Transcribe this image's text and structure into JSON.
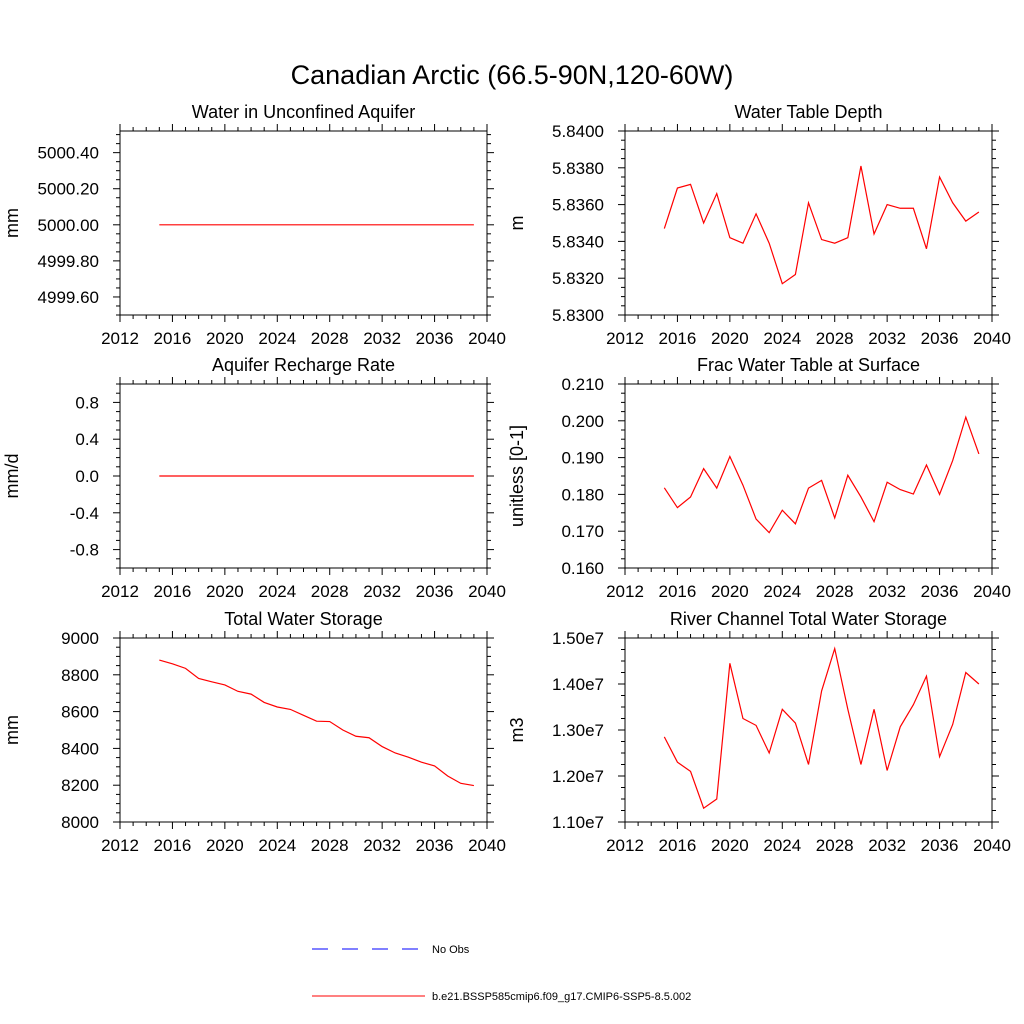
{
  "figure": {
    "title": "Canadian Arctic (66.5-90N,120-60W)"
  },
  "colors": {
    "model": "#ff0000",
    "obs": "#0000ff",
    "axis": "#000000"
  },
  "legend": {
    "placement": "bottom-center",
    "entries": [
      {
        "label": "No Obs",
        "style": "dashed",
        "color": "#0000ff"
      },
      {
        "label": "b.e21.BSSP585cmip6.f09_g17.CMIP6-SSP5-8.5.002",
        "style": "solid",
        "color": "#ff0000"
      }
    ]
  },
  "chart_data": [
    {
      "type": "line",
      "title": "Water in Unconfined Aquifer",
      "ylabel": "mm",
      "xlim": [
        2012,
        2040
      ],
      "ylim": [
        4999.5,
        5000.52
      ],
      "xticks": [
        2012,
        2016,
        2020,
        2024,
        2028,
        2032,
        2036,
        2040
      ],
      "yticks": [
        "4999.60",
        "4999.80",
        "5000.00",
        "5000.20",
        "5000.40"
      ],
      "x": [
        2015,
        2039
      ],
      "values": [
        5000.0,
        5000.0
      ]
    },
    {
      "type": "line",
      "title": "Water Table Depth",
      "ylabel": "m",
      "xlim": [
        2012,
        2040
      ],
      "ylim": [
        5.83,
        5.84
      ],
      "xticks": [
        2012,
        2016,
        2020,
        2024,
        2028,
        2032,
        2036,
        2040
      ],
      "yticks": [
        "5.8300",
        "5.8320",
        "5.8340",
        "5.8360",
        "5.8380",
        "5.8400"
      ],
      "x": [
        2015,
        2016,
        2017,
        2018,
        2019,
        2020,
        2021,
        2022,
        2023,
        2024,
        2025,
        2026,
        2027,
        2028,
        2029,
        2030,
        2031,
        2032,
        2033,
        2034,
        2035,
        2036,
        2037,
        2038,
        2039
      ],
      "values": [
        5.8347,
        5.8369,
        5.8371,
        5.835,
        5.8366,
        5.8342,
        5.8339,
        5.8355,
        5.8339,
        5.8317,
        5.8322,
        5.8361,
        5.8341,
        5.8339,
        5.8342,
        5.8381,
        5.8344,
        5.836,
        5.8358,
        5.8358,
        5.8336,
        5.8375,
        5.8361,
        5.8351,
        5.8356
      ]
    },
    {
      "type": "line",
      "title": "Aquifer Recharge Rate",
      "ylabel": "mm/d",
      "xlim": [
        2012,
        2040
      ],
      "ylim": [
        -1.0,
        1.0
      ],
      "xticks": [
        2012,
        2016,
        2020,
        2024,
        2028,
        2032,
        2036,
        2040
      ],
      "yticks": [
        "-0.8",
        "-0.4",
        "0.0",
        "0.4",
        "0.8"
      ],
      "x": [
        2015,
        2039
      ],
      "values": [
        0.0,
        0.0
      ]
    },
    {
      "type": "line",
      "title": "Frac Water Table at Surface",
      "ylabel": "unitless [0-1]",
      "xlim": [
        2012,
        2040
      ],
      "ylim": [
        0.16,
        0.21
      ],
      "xticks": [
        2012,
        2016,
        2020,
        2024,
        2028,
        2032,
        2036,
        2040
      ],
      "yticks": [
        "0.160",
        "0.170",
        "0.180",
        "0.190",
        "0.200",
        "0.210"
      ],
      "x": [
        2015,
        2016,
        2017,
        2018,
        2019,
        2020,
        2021,
        2022,
        2023,
        2024,
        2025,
        2026,
        2027,
        2028,
        2029,
        2030,
        2031,
        2032,
        2033,
        2034,
        2035,
        2036,
        2037,
        2038,
        2039
      ],
      "values": [
        0.1818,
        0.1764,
        0.1793,
        0.187,
        0.1817,
        0.1903,
        0.1825,
        0.1733,
        0.1696,
        0.1757,
        0.172,
        0.1817,
        0.1838,
        0.1736,
        0.1852,
        0.1793,
        0.1726,
        0.1833,
        0.1813,
        0.1801,
        0.188,
        0.18,
        0.1892,
        0.201,
        0.191
      ]
    },
    {
      "type": "line",
      "title": "Total Water Storage",
      "ylabel": "mm",
      "xlim": [
        2012,
        2040
      ],
      "ylim": [
        8000,
        9000
      ],
      "xticks": [
        2012,
        2016,
        2020,
        2024,
        2028,
        2032,
        2036,
        2040
      ],
      "yticks": [
        "8000",
        "8200",
        "8400",
        "8600",
        "8800",
        "9000"
      ],
      "x": [
        2015,
        2016,
        2017,
        2018,
        2019,
        2020,
        2021,
        2022,
        2023,
        2024,
        2025,
        2026,
        2027,
        2028,
        2029,
        2030,
        2031,
        2032,
        2033,
        2034,
        2035,
        2036,
        2037,
        2038,
        2039
      ],
      "values": [
        8880,
        8860,
        8835,
        8780,
        8762,
        8745,
        8710,
        8695,
        8650,
        8625,
        8612,
        8580,
        8548,
        8546,
        8500,
        8466,
        8458,
        8410,
        8375,
        8352,
        8325,
        8305,
        8250,
        8210,
        8198
      ]
    },
    {
      "type": "line",
      "title": "River Channel Total Water Storage",
      "ylabel": "m3",
      "xlim": [
        2012,
        2040
      ],
      "ylim": [
        11000000,
        15000000
      ],
      "xticks": [
        2012,
        2016,
        2020,
        2024,
        2028,
        2032,
        2036,
        2040
      ],
      "yticks": [
        "1.10e7",
        "1.20e7",
        "1.30e7",
        "1.40e7",
        "1.50e7"
      ],
      "x": [
        2015,
        2016,
        2017,
        2018,
        2019,
        2020,
        2021,
        2022,
        2023,
        2024,
        2025,
        2026,
        2027,
        2028,
        2029,
        2030,
        2031,
        2032,
        2033,
        2034,
        2035,
        2036,
        2037,
        2038,
        2039
      ],
      "values": [
        12850000,
        12300000,
        12100000,
        11300000,
        11500000,
        14450000,
        13250000,
        13100000,
        12500000,
        13450000,
        13150000,
        12250000,
        13850000,
        14770000,
        13450000,
        12250000,
        13450000,
        12120000,
        13070000,
        13550000,
        14170000,
        12420000,
        13120000,
        14250000,
        14000000
      ]
    }
  ]
}
